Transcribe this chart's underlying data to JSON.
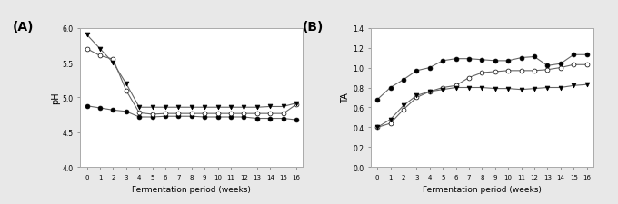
{
  "x_weeks": [
    0,
    1,
    2,
    3,
    4,
    5,
    6,
    7,
    8,
    9,
    10,
    11,
    12,
    13,
    14,
    15,
    16
  ],
  "pH_filled_circle": [
    4.88,
    4.85,
    4.82,
    4.8,
    4.72,
    4.72,
    4.73,
    4.73,
    4.73,
    4.72,
    4.72,
    4.72,
    4.72,
    4.7,
    4.7,
    4.7,
    4.68
  ],
  "pH_open_circle": [
    5.7,
    5.6,
    5.55,
    5.1,
    4.78,
    4.76,
    4.77,
    4.77,
    4.77,
    4.77,
    4.77,
    4.77,
    4.77,
    4.77,
    4.77,
    4.77,
    4.9
  ],
  "pH_filled_tri": [
    5.9,
    5.7,
    5.5,
    5.2,
    4.86,
    4.86,
    4.86,
    4.86,
    4.86,
    4.86,
    4.86,
    4.86,
    4.86,
    4.86,
    4.87,
    4.87,
    4.92
  ],
  "TA_filled_circle": [
    0.68,
    0.8,
    0.88,
    0.97,
    1.0,
    1.07,
    1.09,
    1.09,
    1.08,
    1.07,
    1.07,
    1.1,
    1.11,
    1.02,
    1.04,
    1.13,
    1.13
  ],
  "TA_open_circle": [
    0.4,
    0.44,
    0.58,
    0.7,
    0.76,
    0.8,
    0.82,
    0.9,
    0.95,
    0.96,
    0.97,
    0.97,
    0.97,
    0.98,
    1.0,
    1.03,
    1.03
  ],
  "TA_filled_tri": [
    0.4,
    0.48,
    0.62,
    0.72,
    0.76,
    0.78,
    0.8,
    0.8,
    0.8,
    0.79,
    0.79,
    0.78,
    0.79,
    0.8,
    0.8,
    0.82,
    0.83
  ],
  "pH_ylim": [
    4.0,
    6.0
  ],
  "pH_yticks": [
    4.0,
    4.5,
    5.0,
    5.5,
    6.0
  ],
  "TA_ylim": [
    0.0,
    1.4
  ],
  "TA_yticks": [
    0.0,
    0.2,
    0.4,
    0.6,
    0.8,
    1.0,
    1.2,
    1.4
  ],
  "xlabel": "Fermentation period (weeks)",
  "pH_ylabel": "pH",
  "TA_ylabel": "TA",
  "label_A": "(A)",
  "label_B": "(B)",
  "fig_bg_color": "#e8e8e8",
  "axes_bg_color": "#ffffff",
  "spine_color": "#aaaaaa",
  "line_color": "#666666",
  "marker_filled_circle": "o",
  "marker_open_circle": "o",
  "marker_filled_tri": "v",
  "markersize": 3.5,
  "linewidth": 0.8
}
